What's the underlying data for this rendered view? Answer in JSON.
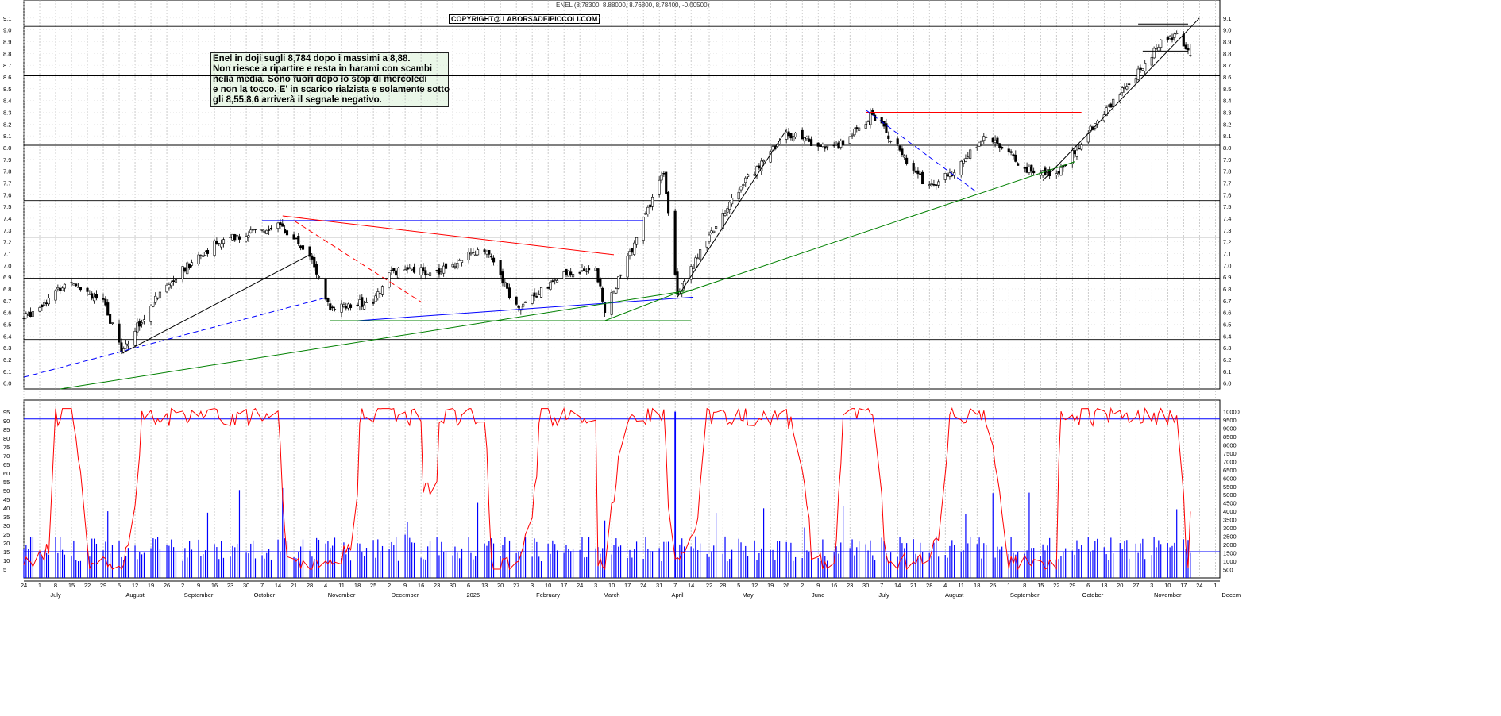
{
  "header": "ENEL (8.78300, 8.88000, 8.76800, 8.78400, -0.00500)",
  "copyright": "COPYRIGHT@ LABORSADEIPICCOLI.COM",
  "note_lines": [
    "Enel in doji sugli 8,784 dopo i massimi a 8,88.",
    "Non riesce a ripartire e resta in harami con scambi",
    "nella media. Sono fuori dopo lo stop di mercoledì",
    "e non la tocco. E' in scarico rialzista e solamente sotto",
    "gli 8,55.8,6 arriverà il segnale negativo."
  ],
  "colors": {
    "up": "#ffffff",
    "down": "#000000",
    "oscillator": "#ff0000",
    "volume": "#0000ff",
    "grid": "#aaaaaa"
  },
  "chart_data": [
    {
      "type": "candlestick",
      "title": "ENEL",
      "ylim": [
        5.95,
        9.2
      ],
      "yticks": [
        "6.0",
        "6.1",
        "6.2",
        "6.3",
        "6.4",
        "6.5",
        "6.6",
        "6.7",
        "6.8",
        "6.9",
        "7.0",
        "7.1",
        "7.2",
        "7.3",
        "7.4",
        "7.5",
        "7.6",
        "7.7",
        "7.8",
        "7.9",
        "8.0",
        "8.1",
        "8.2",
        "8.3",
        "8.4",
        "8.5",
        "8.6",
        "8.7",
        "8.8",
        "8.9",
        "9.0",
        "9.1"
      ],
      "last_bar": {
        "open": 8.783,
        "high": 8.88,
        "low": 8.768,
        "close": 8.784,
        "change": -0.005
      },
      "horizontal_levels": [
        6.37,
        6.89,
        7.24,
        7.55,
        8.02,
        8.61,
        9.03
      ],
      "anchor_closes": [
        [
          "2024-06-24",
          6.55
        ],
        [
          "2024-07-15",
          6.88
        ],
        [
          "2024-07-29",
          6.68
        ],
        [
          "2024-08-06",
          6.28
        ],
        [
          "2024-08-26",
          6.85
        ],
        [
          "2024-09-16",
          7.18
        ],
        [
          "2024-10-14",
          7.35
        ],
        [
          "2024-10-28",
          7.1
        ],
        [
          "2024-11-06",
          6.62
        ],
        [
          "2024-11-25",
          6.7
        ],
        [
          "2024-12-03",
          6.95
        ],
        [
          "2024-12-23",
          6.95
        ],
        [
          "2025-01-13",
          7.15
        ],
        [
          "2025-01-27",
          6.65
        ],
        [
          "2025-02-17",
          6.92
        ],
        [
          "2025-03-03",
          6.98
        ],
        [
          "2025-03-07",
          6.6
        ],
        [
          "2025-03-17",
          7.05
        ],
        [
          "2025-04-02",
          7.8
        ],
        [
          "2025-04-08",
          6.78
        ],
        [
          "2025-05-05",
          7.65
        ],
        [
          "2025-05-26",
          8.12
        ],
        [
          "2025-06-16",
          7.98
        ],
        [
          "2025-07-03",
          8.28
        ],
        [
          "2025-07-28",
          7.65
        ],
        [
          "2025-08-11",
          7.85
        ],
        [
          "2025-08-22",
          8.12
        ],
        [
          "2025-09-08",
          7.82
        ],
        [
          "2025-09-22",
          7.78
        ],
        [
          "2025-10-13",
          8.3
        ],
        [
          "2025-10-27",
          8.62
        ],
        [
          "2025-11-07",
          8.9
        ],
        [
          "2025-11-14",
          8.95
        ],
        [
          "2025-11-20",
          8.784
        ]
      ],
      "trendlines": [
        {
          "color": "#000000",
          "from": [
            "2024-08-06",
            6.25
          ],
          "to": [
            "2024-10-29",
            7.1
          ]
        },
        {
          "color": "#0000ff",
          "style": "dashed",
          "from": [
            "2024-06-24",
            6.05
          ],
          "to": [
            "2024-11-05",
            6.73
          ]
        },
        {
          "color": "#0000ff",
          "from": [
            "2024-10-07",
            7.38
          ],
          "to": [
            "2025-03-24",
            7.38
          ]
        },
        {
          "color": "#0000ff",
          "from": [
            "2024-11-18",
            6.53
          ],
          "to": [
            "2025-04-15",
            6.73
          ]
        },
        {
          "color": "#ff0000",
          "from": [
            "2024-10-16",
            7.42
          ],
          "to": [
            "2025-03-11",
            7.09
          ]
        },
        {
          "color": "#ff0000",
          "style": "dashed",
          "from": [
            "2024-10-21",
            7.38
          ],
          "to": [
            "2024-12-16",
            6.69
          ]
        },
        {
          "color": "#008000",
          "from": [
            "2024-07-10",
            5.95
          ],
          "to": [
            "2025-04-14",
            6.79
          ]
        },
        {
          "color": "#008000",
          "from": [
            "2024-11-06",
            6.53
          ],
          "to": [
            "2025-04-14",
            6.53
          ]
        },
        {
          "color": "#008000",
          "from": [
            "2025-03-07",
            6.53
          ],
          "to": [
            "2025-04-11",
            6.79
          ]
        },
        {
          "color": "#008000",
          "from": [
            "2025-04-08",
            6.75
          ],
          "to": [
            "2025-09-30",
            7.88
          ]
        },
        {
          "color": "#000000",
          "from": [
            "2025-04-08",
            6.73
          ],
          "to": [
            "2025-05-26",
            8.15
          ]
        },
        {
          "color": "#ff0000",
          "from": [
            "2025-06-30",
            8.3
          ],
          "to": [
            "2025-10-03",
            8.3
          ]
        },
        {
          "color": "#0000ff",
          "style": "dashed",
          "from": [
            "2025-06-30",
            8.32
          ],
          "to": [
            "2025-08-18",
            7.62
          ]
        },
        {
          "color": "#000000",
          "from": [
            "2025-09-16",
            7.72
          ],
          "to": [
            "2025-11-24",
            9.1
          ]
        },
        {
          "color": "#000000",
          "from": [
            "2025-10-28",
            9.05
          ],
          "to": [
            "2025-11-19",
            9.05
          ]
        },
        {
          "color": "#000000",
          "from": [
            "2025-10-30",
            8.82
          ],
          "to": [
            "2025-11-19",
            8.82
          ]
        }
      ]
    },
    {
      "type": "line",
      "name": "oscillator",
      "ylim": [
        0,
        100
      ],
      "yticks_left": [
        "5",
        "10",
        "15",
        "20",
        "25",
        "30",
        "35",
        "40",
        "45",
        "50",
        "55",
        "60",
        "65",
        "70",
        "75",
        "80",
        "85",
        "90",
        "95"
      ],
      "reference_lines": [
        15,
        91
      ],
      "last_value": 38
    },
    {
      "type": "bar",
      "name": "volume",
      "ylim": [
        0,
        10500
      ],
      "yticks_right": [
        "500",
        "1000",
        "1500",
        "2000",
        "2500",
        "3000",
        "3500",
        "4000",
        "4500",
        "5000",
        "5500",
        "6000",
        "6500",
        "7000",
        "7500",
        "8000",
        "8500",
        "9000",
        "9500",
        "10000"
      ],
      "typical_range": [
        1000,
        2500
      ],
      "peak_value": 10000
    }
  ],
  "x_axis": {
    "start": "2024-06-24",
    "end": "2025-12-03",
    "day_labels": [
      [
        "2024-06-24",
        "24"
      ],
      [
        "2024-07-01",
        "1"
      ],
      [
        "2024-07-08",
        "8"
      ],
      [
        "2024-07-15",
        "15"
      ],
      [
        "2024-07-22",
        "22"
      ],
      [
        "2024-07-29",
        "29"
      ],
      [
        "2024-08-05",
        "5"
      ],
      [
        "2024-08-12",
        "12"
      ],
      [
        "2024-08-19",
        "19"
      ],
      [
        "2024-08-26",
        "26"
      ],
      [
        "2024-09-02",
        "2"
      ],
      [
        "2024-09-09",
        "9"
      ],
      [
        "2024-09-16",
        "16"
      ],
      [
        "2024-09-23",
        "23"
      ],
      [
        "2024-09-30",
        "30"
      ],
      [
        "2024-10-07",
        "7"
      ],
      [
        "2024-10-14",
        "14"
      ],
      [
        "2024-10-21",
        "21"
      ],
      [
        "2024-10-28",
        "28"
      ],
      [
        "2024-11-04",
        "4"
      ],
      [
        "2024-11-11",
        "11"
      ],
      [
        "2024-11-18",
        "18"
      ],
      [
        "2024-11-25",
        "25"
      ],
      [
        "2024-12-02",
        "2"
      ],
      [
        "2024-12-09",
        "9"
      ],
      [
        "2024-12-16",
        "16"
      ],
      [
        "2024-12-23",
        "23"
      ],
      [
        "2024-12-30",
        "30"
      ],
      [
        "2025-01-06",
        "6"
      ],
      [
        "2025-01-13",
        "13"
      ],
      [
        "2025-01-20",
        "20"
      ],
      [
        "2025-01-27",
        "27"
      ],
      [
        "2025-02-03",
        "3"
      ],
      [
        "2025-02-10",
        "10"
      ],
      [
        "2025-02-17",
        "17"
      ],
      [
        "2025-02-24",
        "24"
      ],
      [
        "2025-03-03",
        "3"
      ],
      [
        "2025-03-10",
        "10"
      ],
      [
        "2025-03-17",
        "17"
      ],
      [
        "2025-03-24",
        "24"
      ],
      [
        "2025-03-31",
        "31"
      ],
      [
        "2025-04-07",
        "7"
      ],
      [
        "2025-04-14",
        "14"
      ],
      [
        "2025-04-22",
        "22"
      ],
      [
        "2025-04-28",
        "28"
      ],
      [
        "2025-05-05",
        "5"
      ],
      [
        "2025-05-12",
        "12"
      ],
      [
        "2025-05-19",
        "19"
      ],
      [
        "2025-05-26",
        "26"
      ],
      [
        "2025-06-02",
        "2"
      ],
      [
        "2025-06-09",
        "9"
      ],
      [
        "2025-06-16",
        "16"
      ],
      [
        "2025-06-23",
        "23"
      ],
      [
        "2025-06-30",
        "30"
      ],
      [
        "2025-07-07",
        "7"
      ],
      [
        "2025-07-14",
        "14"
      ],
      [
        "2025-07-21",
        "21"
      ],
      [
        "2025-07-28",
        "28"
      ],
      [
        "2025-08-04",
        "4"
      ],
      [
        "2025-08-11",
        "11"
      ],
      [
        "2025-08-18",
        "18"
      ],
      [
        "2025-08-25",
        "25"
      ],
      [
        "2025-09-01",
        "1"
      ],
      [
        "2025-09-08",
        "8"
      ],
      [
        "2025-09-15",
        "15"
      ],
      [
        "2025-09-22",
        "22"
      ],
      [
        "2025-09-29",
        "29"
      ],
      [
        "2025-10-06",
        "6"
      ],
      [
        "2025-10-13",
        "13"
      ],
      [
        "2025-10-20",
        "20"
      ],
      [
        "2025-10-27",
        "27"
      ],
      [
        "2025-11-03",
        "3"
      ],
      [
        "2025-11-10",
        "10"
      ],
      [
        "2025-11-17",
        "17"
      ],
      [
        "2025-11-24",
        "24"
      ],
      [
        "2025-12-01",
        "1"
      ]
    ],
    "month_labels": [
      [
        "2024-07-01",
        "July"
      ],
      [
        "2024-08-05",
        "August"
      ],
      [
        "2024-09-02",
        "September"
      ],
      [
        "2024-10-01",
        "October"
      ],
      [
        "2024-11-04",
        "November"
      ],
      [
        "2024-12-02",
        "December"
      ],
      [
        "2025-01-01",
        "2025"
      ],
      [
        "2025-02-03",
        "February"
      ],
      [
        "2025-03-03",
        "March"
      ],
      [
        "2025-04-01",
        "April"
      ],
      [
        "2025-05-02",
        "May"
      ],
      [
        "2025-06-02",
        "June"
      ],
      [
        "2025-07-01",
        "July"
      ],
      [
        "2025-08-01",
        "August"
      ],
      [
        "2025-09-01",
        "September"
      ],
      [
        "2025-10-01",
        "October"
      ],
      [
        "2025-11-03",
        "November"
      ],
      [
        "2025-12-01",
        "Decem"
      ]
    ]
  }
}
